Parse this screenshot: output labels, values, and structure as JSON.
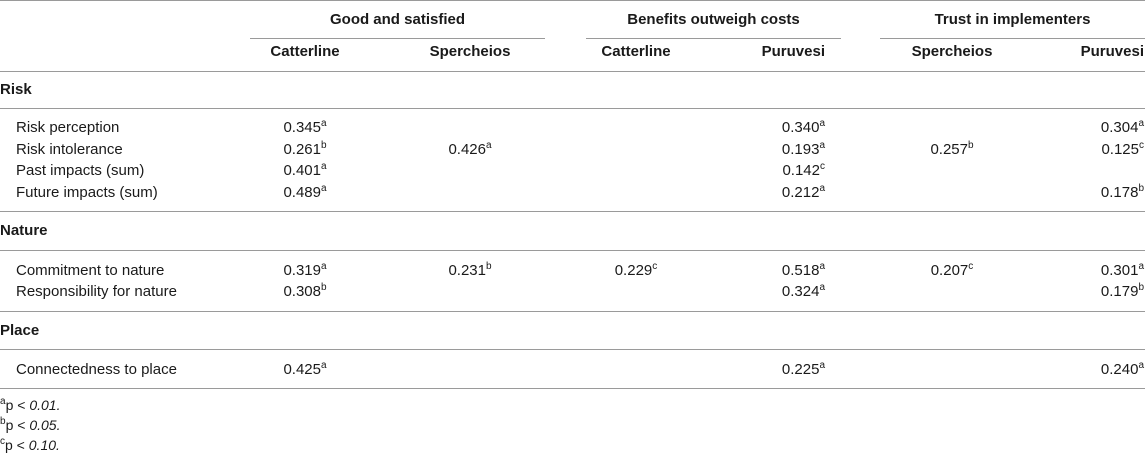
{
  "groups": [
    "Good and satisfied",
    "Benefits outweigh costs",
    "Trust in implementers"
  ],
  "columns": [
    "Catterline",
    "Spercheios",
    "Catterline",
    "Puruvesi",
    "Spercheios",
    "Puruvesi"
  ],
  "sections": [
    {
      "title": "Risk",
      "rows": [
        {
          "label": "Risk perception",
          "cells": [
            {
              "v": "0.345",
              "s": "a"
            },
            null,
            null,
            {
              "v": "0.340",
              "s": "a"
            },
            null,
            {
              "v": "0.304",
              "s": "a"
            }
          ]
        },
        {
          "label": "Risk intolerance",
          "cells": [
            {
              "v": "0.261",
              "s": "b"
            },
            {
              "v": "0.426",
              "s": "a"
            },
            null,
            {
              "v": "0.193",
              "s": "a"
            },
            {
              "v": "0.257",
              "s": "b"
            },
            {
              "v": "0.125",
              "s": "c"
            }
          ]
        },
        {
          "label": "Past impacts (sum)",
          "cells": [
            {
              "v": "0.401",
              "s": "a"
            },
            null,
            null,
            {
              "v": "0.142",
              "s": "c"
            },
            null,
            null
          ]
        },
        {
          "label": "Future impacts (sum)",
          "cells": [
            {
              "v": "0.489",
              "s": "a"
            },
            null,
            null,
            {
              "v": "0.212",
              "s": "a"
            },
            null,
            {
              "v": "0.178",
              "s": "b"
            }
          ]
        }
      ]
    },
    {
      "title": "Nature",
      "rows": [
        {
          "label": "Commitment to nature",
          "cells": [
            {
              "v": "0.319",
              "s": "a"
            },
            {
              "v": "0.231",
              "s": "b"
            },
            {
              "v": "0.229",
              "s": "c"
            },
            {
              "v": "0.518",
              "s": "a"
            },
            {
              "v": "0.207",
              "s": "c"
            },
            {
              "v": "0.301",
              "s": "a"
            }
          ]
        },
        {
          "label": "Responsibility for nature",
          "cells": [
            {
              "v": "0.308",
              "s": "b"
            },
            null,
            null,
            {
              "v": "0.324",
              "s": "a"
            },
            null,
            {
              "v": "0.179",
              "s": "b"
            }
          ]
        }
      ]
    },
    {
      "title": "Place",
      "rows": [
        {
          "label": "Connectedness to place",
          "cells": [
            {
              "v": "0.425",
              "s": "a"
            },
            null,
            null,
            {
              "v": "0.225",
              "s": "a"
            },
            null,
            {
              "v": "0.240",
              "s": "a"
            }
          ]
        }
      ]
    }
  ],
  "footnotes": [
    {
      "mark": "a",
      "text": "p",
      "rel": "<",
      "val": "0.01."
    },
    {
      "mark": "b",
      "text": "p",
      "rel": "<",
      "val": "0.05."
    },
    {
      "mark": "c",
      "text": "p",
      "rel": "<",
      "val": "0.10."
    }
  ]
}
